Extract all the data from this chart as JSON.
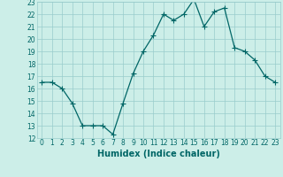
{
  "x": [
    0,
    1,
    2,
    3,
    4,
    5,
    6,
    7,
    8,
    9,
    10,
    11,
    12,
    13,
    14,
    15,
    16,
    17,
    18,
    19,
    20,
    21,
    22,
    23
  ],
  "y": [
    16.5,
    16.5,
    16.0,
    14.8,
    13.0,
    13.0,
    13.0,
    12.3,
    14.8,
    17.2,
    19.0,
    20.3,
    22.0,
    21.5,
    22.0,
    23.2,
    21.0,
    22.2,
    22.5,
    19.3,
    19.0,
    18.3,
    17.0,
    16.5
  ],
  "line_color": "#006666",
  "marker_color": "#006666",
  "bg_color": "#cceee8",
  "grid_color": "#99cccc",
  "xlabel": "Humidex (Indice chaleur)",
  "xlim": [
    -0.5,
    23.5
  ],
  "ylim": [
    12,
    23
  ],
  "yticks": [
    12,
    13,
    14,
    15,
    16,
    17,
    18,
    19,
    20,
    21,
    22,
    23
  ],
  "xticks": [
    0,
    1,
    2,
    3,
    4,
    5,
    6,
    7,
    8,
    9,
    10,
    11,
    12,
    13,
    14,
    15,
    16,
    17,
    18,
    19,
    20,
    21,
    22,
    23
  ],
  "tick_fontsize": 5.5,
  "xlabel_fontsize": 7,
  "marker_size": 2,
  "line_width": 0.9
}
